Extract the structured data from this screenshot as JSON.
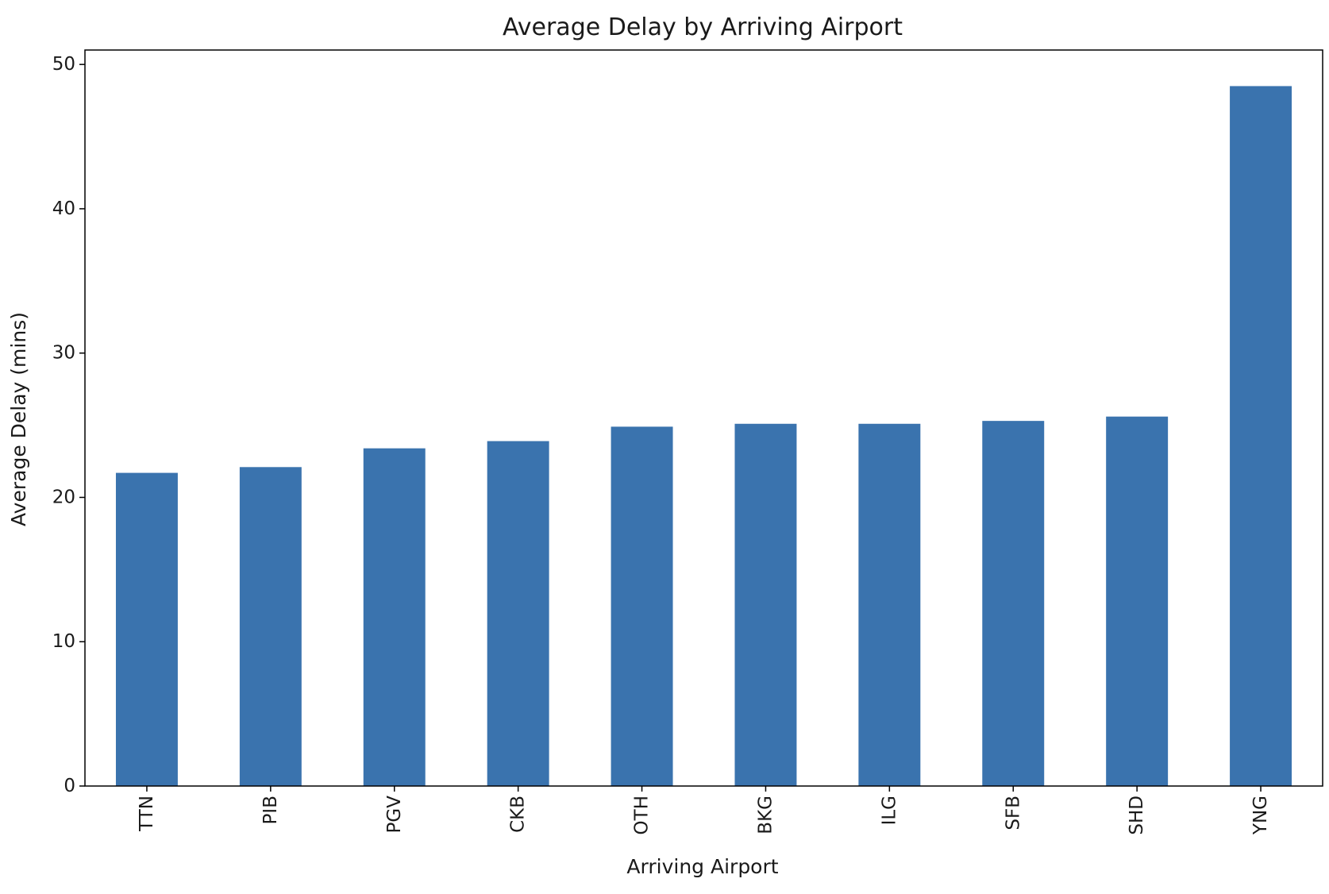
{
  "chart_data": {
    "type": "bar",
    "title": "Average Delay by Arriving Airport",
    "xlabel": "Arriving Airport",
    "ylabel": "Average Delay (mins)",
    "categories": [
      "TTN",
      "PIB",
      "PGV",
      "CKB",
      "OTH",
      "BKG",
      "ILG",
      "SFB",
      "SHD",
      "YNG"
    ],
    "values": [
      21.7,
      22.1,
      23.4,
      23.9,
      24.9,
      25.1,
      25.1,
      25.3,
      25.6,
      48.5
    ],
    "ylim": [
      0,
      51
    ],
    "yticks": [
      0,
      10,
      20,
      30,
      40,
      50
    ],
    "bar_color": "#3a73ae",
    "grid": false,
    "legend": false
  }
}
